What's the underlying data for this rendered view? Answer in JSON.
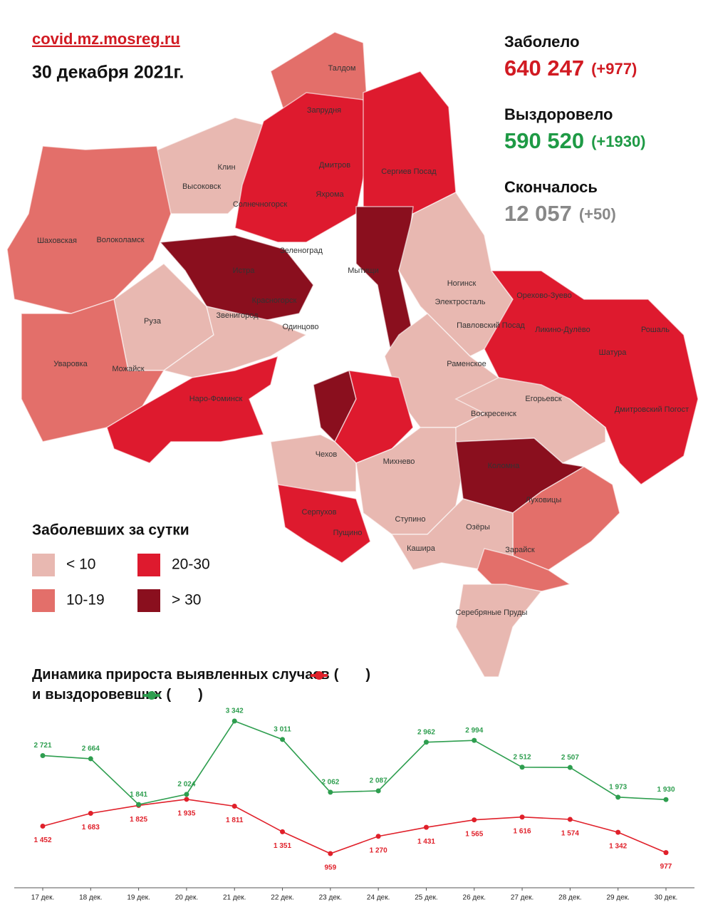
{
  "header": {
    "site": "covid.mz.mosreg.ru",
    "date": "30 декабря 2021г."
  },
  "stats": [
    {
      "label": "Заболело",
      "value": "640 247",
      "delta": "(+977)",
      "color": "#d11a22"
    },
    {
      "label": "Выздоровело",
      "value": "590 520",
      "delta": "(+1930)",
      "color": "#1e9a45"
    },
    {
      "label": "Скончалось",
      "value": "12 057",
      "delta": "(+50)",
      "color": "#888888"
    }
  ],
  "map": {
    "towns": [
      "Талдом",
      "Запрудня",
      "Клин",
      "Высоковск",
      "Дмитров",
      "Сергиев Посад",
      "Яхрома",
      "Солнечногорск",
      "Шаховская",
      "Волоколамск",
      "Зеленоград",
      "Истра",
      "Мытищи",
      "Ногинск",
      "Электросталь",
      "Красногорск",
      "Звенигород",
      "Руза",
      "Павловский Посад",
      "Орехово-Зуево",
      "Ликино-Дулёво",
      "Рошаль",
      "Одинцово",
      "Шатура",
      "Уваровка",
      "Можайск",
      "Раменское",
      "Наро-Фоминск",
      "Егорьевск",
      "Воскресенск",
      "Дмитровский Погост",
      "Чехов",
      "Михнево",
      "Коломна",
      "Луховицы",
      "Серпухов",
      "Ступино",
      "Озёры",
      "Пущино",
      "Кашира",
      "Зарайск",
      "Серебряные Пруды"
    ]
  },
  "legend": {
    "title": "Заболевших за сутки",
    "items": [
      {
        "label": "< 10",
        "color": "#e8b8b1"
      },
      {
        "label": "10-19",
        "color": "#e36f6a"
      },
      {
        "label": "20-30",
        "color": "#de1a2e"
      },
      {
        "label": "> 30",
        "color": "#8a0f1e"
      }
    ]
  },
  "chart_data": {
    "type": "line",
    "title": "Динамика прироста",
    "joiner": "и",
    "brackets": [
      "(",
      ")"
    ],
    "categories": [
      "17 дек.",
      "18 дек.",
      "19 дек.",
      "20 дек.",
      "21 дек.",
      "22 дек.",
      "23 дек.",
      "24 дек.",
      "25 дек.",
      "26 дек.",
      "27 дек.",
      "28 дек.",
      "29 дек.",
      "30 дек."
    ],
    "series": [
      {
        "name": "выявленных случаев",
        "color": "#e0202a",
        "values": [
          1452,
          1683,
          1825,
          1935,
          1811,
          1351,
          959,
          1270,
          1431,
          1565,
          1616,
          1574,
          1342,
          977
        ],
        "value_labels": [
          "1 452",
          "1 683",
          "1 825",
          "1 935",
          "1 811",
          "1 351",
          "959",
          "1 270",
          "1 431",
          "1 565",
          "1 616",
          "1 574",
          "1 342",
          "977"
        ]
      },
      {
        "name": "выздоровевших",
        "color": "#2e9e4f",
        "values": [
          2721,
          2664,
          1841,
          2024,
          3342,
          3011,
          2062,
          2087,
          2962,
          2994,
          2512,
          2507,
          1973,
          1930
        ],
        "value_labels": [
          "2 721",
          "2 664",
          "1 841",
          "2 024",
          "3 342",
          "3 011",
          "2 062",
          "2 087",
          "2 962",
          "2 994",
          "2 512",
          "2 507",
          "1 973",
          "1 930"
        ]
      }
    ]
  }
}
